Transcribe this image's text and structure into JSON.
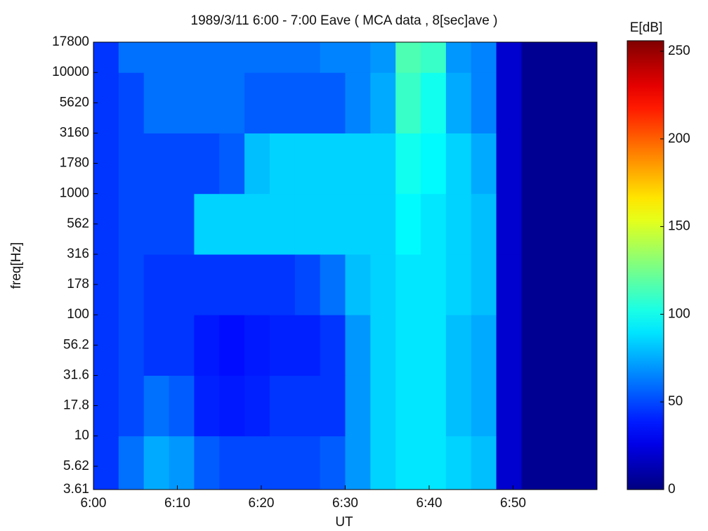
{
  "chart_data": {
    "type": "heatmap",
    "title": "1989/3/11 6:00 - 7:00 Eave ( MCA data , 8[sec]ave )",
    "xlabel": "UT",
    "ylabel": "freq[Hz]",
    "colorbar_label": "E[dB]",
    "colormap": "jet",
    "ylog": true,
    "xlim": [
      0,
      60
    ],
    "xticks": [
      {
        "value": 0,
        "label": "6:00"
      },
      {
        "value": 10,
        "label": "6:10"
      },
      {
        "value": 20,
        "label": "6:20"
      },
      {
        "value": 30,
        "label": "6:30"
      },
      {
        "value": 40,
        "label": "6:40"
      },
      {
        "value": 50,
        "label": "6:50"
      }
    ],
    "ylim": [
      3.61,
      17800
    ],
    "yticks": [
      3.61,
      5.62,
      10,
      17.8,
      31.6,
      56.2,
      100,
      178,
      316,
      562,
      1000,
      1780,
      3160,
      5620,
      10000,
      17800
    ],
    "clim": [
      0,
      256
    ],
    "cticks": [
      0,
      50,
      100,
      150,
      200,
      250
    ],
    "x_edges": [
      0,
      3,
      6,
      9,
      12,
      15,
      18,
      21,
      24,
      27,
      30,
      33,
      36,
      39,
      42,
      45,
      48,
      51,
      54,
      57,
      60
    ],
    "y_edges": [
      3.61,
      10,
      31.6,
      100,
      316,
      1000,
      3160,
      10000,
      17800
    ],
    "z": [
      [
        45,
        60,
        75,
        70,
        55,
        50,
        50,
        50,
        50,
        55,
        70,
        85,
        90,
        90,
        85,
        80,
        20,
        5,
        5,
        5
      ],
      [
        45,
        50,
        60,
        55,
        40,
        38,
        40,
        45,
        45,
        45,
        70,
        85,
        90,
        90,
        80,
        75,
        20,
        5,
        5,
        5
      ],
      [
        45,
        50,
        45,
        45,
        38,
        35,
        38,
        40,
        40,
        45,
        70,
        85,
        90,
        90,
        80,
        75,
        20,
        5,
        5,
        5
      ],
      [
        45,
        50,
        45,
        45,
        45,
        45,
        45,
        45,
        50,
        60,
        80,
        85,
        90,
        90,
        85,
        80,
        20,
        5,
        5,
        5
      ],
      [
        45,
        50,
        50,
        50,
        85,
        85,
        85,
        85,
        85,
        85,
        85,
        85,
        95,
        90,
        85,
        80,
        20,
        5,
        5,
        5
      ],
      [
        45,
        50,
        50,
        50,
        50,
        55,
        80,
        85,
        85,
        85,
        85,
        85,
        100,
        95,
        85,
        75,
        20,
        5,
        5,
        5
      ],
      [
        45,
        50,
        60,
        60,
        60,
        60,
        55,
        55,
        55,
        55,
        65,
        75,
        110,
        100,
        75,
        65,
        20,
        5,
        5,
        5
      ],
      [
        45,
        60,
        60,
        60,
        60,
        60,
        60,
        60,
        60,
        65,
        65,
        70,
        115,
        110,
        70,
        65,
        20,
        5,
        5,
        5
      ]
    ]
  }
}
